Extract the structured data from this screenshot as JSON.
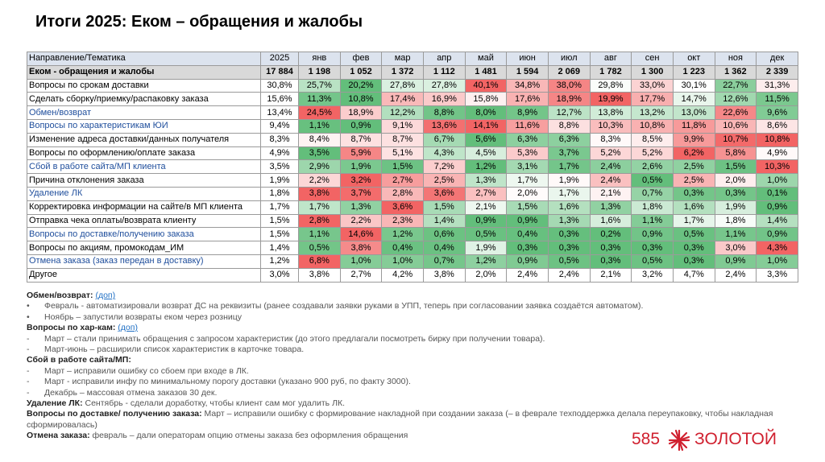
{
  "header": {
    "title": "Итоги 2025: Еком – обращения и жалобы"
  },
  "table": {
    "header": [
      "Направление/Тематика",
      "2025",
      "янв",
      "фев",
      "мар",
      "апр",
      "май",
      "июн",
      "июл",
      "авг",
      "сен",
      "окт",
      "ноя",
      "дек"
    ],
    "rows": [
      [
        "Еком - обращения и жалобы",
        "17 884",
        "1 198",
        "1 052",
        "1 372",
        "1 112",
        "1 481",
        "1 594",
        "2 069",
        "1 782",
        "1 300",
        "1 223",
        "1 362",
        "2 339"
      ],
      [
        "Вопросы по срокам доставки",
        "30,8%",
        "25,7%",
        "20,2%",
        "27,8%",
        "27,8%",
        "40,1%",
        "34,8%",
        "38,0%",
        "29,8%",
        "33,0%",
        "30,1%",
        "22,7%",
        "31,3%"
      ],
      [
        "Сделать сборку/приемку/распаковку заказа",
        "15,6%",
        "11,3%",
        "10,8%",
        "17,4%",
        "16,9%",
        "15,8%",
        "17,6%",
        "18,9%",
        "19,9%",
        "17,7%",
        "14,7%",
        "12,6%",
        "11,5%"
      ],
      [
        "Обмен/возврат",
        "13,4%",
        "24,5%",
        "18,9%",
        "12,2%",
        "8,8%",
        "8,0%",
        "8,9%",
        "12,7%",
        "13,8%",
        "13,2%",
        "13,0%",
        "22,6%",
        "9,6%"
      ],
      [
        "Вопросы по характеристикам ЮИ",
        "9,4%",
        "1,1%",
        "0,9%",
        "9,1%",
        "13,6%",
        "14,1%",
        "11,6%",
        "8,8%",
        "10,3%",
        "10,8%",
        "11,8%",
        "10,6%",
        "8,6%"
      ],
      [
        "Изменение адреса доставки/данных получателя",
        "8,3%",
        "8,4%",
        "8,7%",
        "8,7%",
        "6,7%",
        "5,6%",
        "6,3%",
        "6,3%",
        "8,3%",
        "8,5%",
        "9,9%",
        "10,7%",
        "10,8%"
      ],
      [
        "Вопросы по оформлению/оплате заказа",
        "4,9%",
        "3,5%",
        "5,9%",
        "5,1%",
        "4,3%",
        "4,5%",
        "5,3%",
        "3,7%",
        "5,2%",
        "5,2%",
        "6,2%",
        "5,8%",
        "4,9%"
      ],
      [
        "Сбой в работе сайта/МП клиента",
        "3,5%",
        "2,9%",
        "1,9%",
        "1,5%",
        "7,2%",
        "1,2%",
        "3,1%",
        "1,7%",
        "2,4%",
        "2,6%",
        "2,5%",
        "1,5%",
        "10,3%"
      ],
      [
        "Причина отклонения заказа",
        "1,9%",
        "2,2%",
        "3,2%",
        "2,7%",
        "2,5%",
        "1,3%",
        "1,7%",
        "1,9%",
        "2,4%",
        "0,5%",
        "2,5%",
        "2,0%",
        "1,0%"
      ],
      [
        "Удаление ЛК",
        "1,8%",
        "3,8%",
        "3,7%",
        "2,8%",
        "3,6%",
        "2,7%",
        "2,0%",
        "1,7%",
        "2,1%",
        "0,7%",
        "0,3%",
        "0,3%",
        "0,1%"
      ],
      [
        "Корректировка информации на сайте/в МП клиента",
        "1,7%",
        "1,7%",
        "1,3%",
        "3,6%",
        "1,5%",
        "2,1%",
        "1,5%",
        "1,6%",
        "1,3%",
        "1,8%",
        "1,6%",
        "1,9%",
        "0,9%"
      ],
      [
        "Отправка чека оплаты/возврата клиенту",
        "1,5%",
        "2,8%",
        "2,2%",
        "2,3%",
        "1,4%",
        "0,9%",
        "0,9%",
        "1,3%",
        "1,6%",
        "1,1%",
        "1,7%",
        "1,8%",
        "1,4%"
      ],
      [
        "Вопросы по доставке/получению заказа",
        "1,5%",
        "1,1%",
        "14,6%",
        "1,2%",
        "0,6%",
        "0,5%",
        "0,4%",
        "0,3%",
        "0,2%",
        "0,9%",
        "0,5%",
        "1,1%",
        "0,9%"
      ],
      [
        "Вопросы по акциям, промокодам_ИМ",
        "1,4%",
        "0,5%",
        "3,8%",
        "0,4%",
        "0,4%",
        "1,9%",
        "0,3%",
        "0,3%",
        "0,3%",
        "0,3%",
        "0,3%",
        "3,0%",
        "4,3%"
      ],
      [
        "Отмена заказа (заказ передан в доставку)",
        "1,2%",
        "6,8%",
        "1,0%",
        "1,0%",
        "0,7%",
        "1,2%",
        "0,9%",
        "0,5%",
        "0,3%",
        "0,5%",
        "0,3%",
        "0,9%",
        "1,0%"
      ],
      [
        "Другое",
        "3,0%",
        "3,8%",
        "2,7%",
        "4,2%",
        "3,8%",
        "2,0%",
        "2,4%",
        "2,4%",
        "2,1%",
        "3,2%",
        "4,7%",
        "2,4%",
        "3,3%"
      ]
    ]
  },
  "notes": [
    {
      "heading": "Обмен/возврат:",
      "link": "(доп)",
      "items": [
        {
          "marker": "•",
          "text": "Февраль - автоматизировали возврат ДС на реквизиты (ранее создавали заявки руками в УПП, теперь при согласовании заявка создаётся автоматом)."
        },
        {
          "marker": "•",
          "text": "Ноябрь – запустили возвраты еком через розницу"
        }
      ]
    },
    {
      "heading": "Вопросы по хар-кам:",
      "link": "(доп)",
      "items": [
        {
          "marker": "-",
          "text": "Март – стали принимать обращения с запросом характеристик (до этого предлагали посмотреть бирку при получении товара)."
        },
        {
          "marker": "-",
          "text": "Март-июнь – расширили список характеристик в карточке товара."
        }
      ]
    },
    {
      "heading": "Сбой в работе сайта/МП:",
      "items": [
        {
          "marker": "-",
          "text": "Март – исправили ошибку со сбоем при входе в ЛК."
        },
        {
          "marker": "-",
          "text": "Март - исправили инфу по минимальному порогу доставки (указано 900 руб, по факту 3000)."
        },
        {
          "marker": "-",
          "text": "Декабрь – массовая отмена заказов 30 дек."
        }
      ]
    },
    {
      "heading": "Удаление ЛК:",
      "text": "Сентябрь - сделали доработку, чтобы клиент сам мог удалить ЛК."
    },
    {
      "heading": "Вопросы по доставке/ получению заказа:",
      "text": "Март – исправили ошибку с формирование накладной при создании заказа (– в феврале техподдержка делала переупаковку, чтобы накладная сформировалась)"
    },
    {
      "heading": "Отмена заказа:",
      "text": "февраль – дали операторам опцию отмены заказа без оформления обращения"
    }
  ],
  "logo": {
    "number": "585",
    "name": "ЗОЛОТОЙ"
  }
}
